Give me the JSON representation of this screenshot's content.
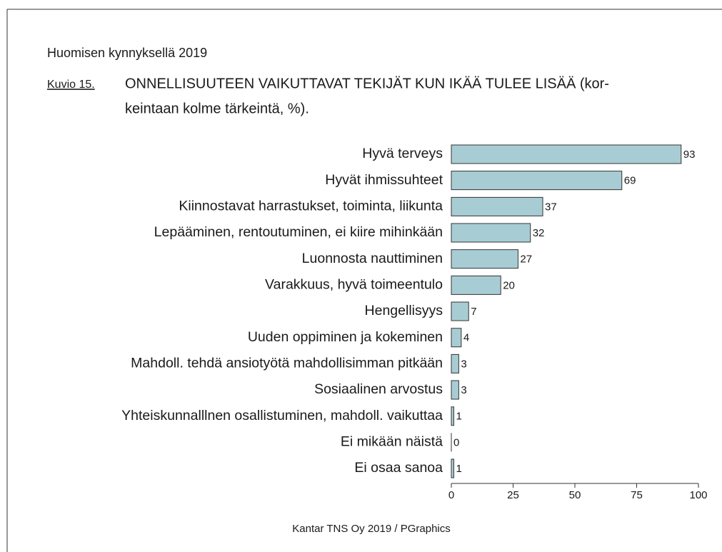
{
  "chart_data": {
    "type": "barh",
    "header": "Huomisen kynnyksellä 2019",
    "figure_label": "Kuvio 15.",
    "title": [
      "ONNELLISUUTEEN VAIKUTTAVAT TEKIJÄT KUN IKÄÄ TULEE LISÄÄ (kor-",
      "keintaan kolme tärkeintä, %)."
    ],
    "categories": [
      "Hyvä terveys",
      "Hyvät ihmissuhteet",
      "Kiinnostavat harrastukset, toiminta, liikunta",
      "Lepääminen, rentoutuminen, ei kiire mihinkään",
      "Luonnosta nauttiminen",
      "Varakkuus, hyvä toimeentulo",
      "Hengellisyys",
      "Uuden oppiminen ja kokeminen",
      "Mahdoll. tehdä ansiotyötä mahdollisimman pitkään",
      "Sosiaalinen arvostus",
      "Yhteiskunnalllnen osallistuminen, mahdoll. vaikuttaa",
      "Ei mikään näistä",
      "Ei osaa sanoa"
    ],
    "values": [
      93,
      69,
      37,
      32,
      27,
      20,
      7,
      4,
      3,
      3,
      1,
      0,
      1
    ],
    "color": "#a8ccd3",
    "xlim": [
      0,
      100
    ],
    "xticks": [
      0,
      25,
      50,
      75,
      100
    ],
    "source": "Kantar TNS Oy 2019 / PGraphics"
  }
}
